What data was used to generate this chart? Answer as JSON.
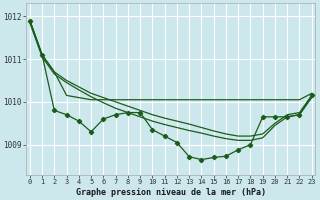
{
  "title": "Graphe pression niveau de la mer (hPa)",
  "bg_color": "#cce8ed",
  "grid_color": "#ffffff",
  "line_color": "#1a5c1a",
  "x_labels": [
    "0",
    "1",
    "2",
    "3",
    "4",
    "5",
    "6",
    "7",
    "8",
    "9",
    "10",
    "11",
    "12",
    "13",
    "14",
    "15",
    "16",
    "17",
    "18",
    "19",
    "20",
    "21",
    "22",
    "23"
  ],
  "ylim": [
    1008.3,
    1012.3
  ],
  "yticks": [
    1009,
    1010,
    1011,
    1012
  ],
  "s_flat": [
    1011.9,
    1011.1,
    1010.7,
    1010.15,
    1010.1,
    1010.05,
    1010.05,
    1010.05,
    1010.05,
    1010.05,
    1010.05,
    1010.05,
    1010.05,
    1010.05,
    1010.05,
    1010.05,
    1010.05,
    1010.05,
    1010.05,
    1010.05,
    1010.05,
    1010.05,
    1010.05,
    1010.2
  ],
  "s_diag1": [
    1011.9,
    1011.1,
    1010.7,
    1010.5,
    1010.35,
    1010.2,
    1010.1,
    1010.0,
    1009.9,
    1009.8,
    1009.7,
    1009.62,
    1009.55,
    1009.48,
    1009.4,
    1009.32,
    1009.25,
    1009.2,
    1009.2,
    1009.25,
    1009.5,
    1009.7,
    1009.75,
    1010.15
  ],
  "s_diag2": [
    1011.85,
    1011.05,
    1010.65,
    1010.45,
    1010.28,
    1010.12,
    1009.98,
    1009.85,
    1009.75,
    1009.65,
    1009.55,
    1009.47,
    1009.4,
    1009.33,
    1009.27,
    1009.2,
    1009.14,
    1009.1,
    1009.1,
    1009.16,
    1009.45,
    1009.65,
    1009.7,
    1010.1
  ],
  "s_jagged": [
    1011.9,
    1011.1,
    1009.8,
    1009.7,
    1009.55,
    1009.3,
    1009.6,
    1009.7,
    1009.75,
    1009.75,
    1009.35,
    1009.2,
    1009.05,
    1008.72,
    1008.65,
    1008.7,
    1008.73,
    1008.88,
    1009.0,
    1009.65,
    1009.65,
    1009.65,
    1009.7,
    1010.15
  ]
}
